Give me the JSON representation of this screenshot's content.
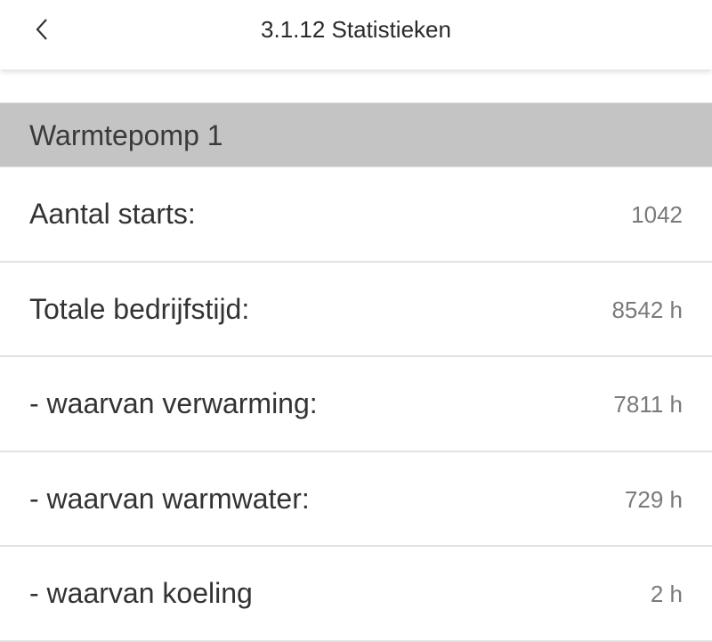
{
  "header": {
    "title": "3.1.12 Statistieken",
    "back_icon": "chevron-left-icon"
  },
  "section": {
    "title": "Warmtepomp 1"
  },
  "rows": [
    {
      "label": "Aantal starts:",
      "value": "1042"
    },
    {
      "label": "Totale bedrijfstijd:",
      "value": "8542 h"
    },
    {
      "label": "- waarvan verwarming:",
      "value": "7811 h"
    },
    {
      "label": "- waarvan warmwater:",
      "value": "729 h"
    },
    {
      "label": "- waarvan koeling",
      "value": "2 h"
    }
  ]
}
